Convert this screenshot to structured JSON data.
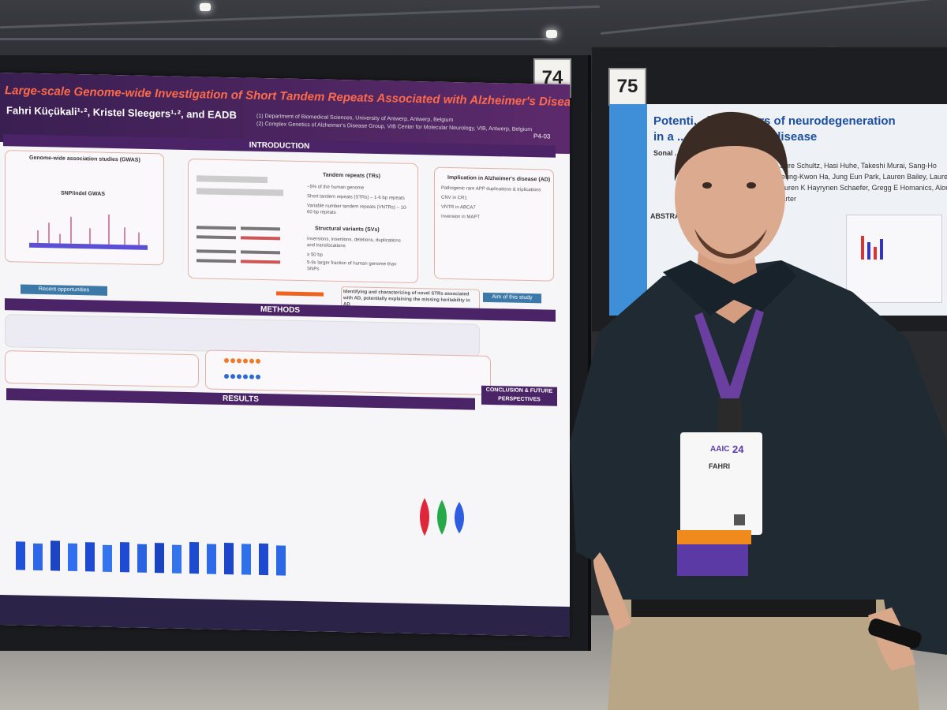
{
  "scene": {
    "description_label": "Poster session photo"
  },
  "board_numbers": {
    "left": "74",
    "right": "75"
  },
  "poster_left": {
    "title": "Large-scale Genome-wide Investigation of Short Tandem Repeats Associated with Alzheimer's Disease Risk",
    "authors": "Fahri Küçükali¹·², Kristel Sleegers¹·², and EADB",
    "affiliation_1": "(1) Department of Biomedical Sciences, University of Antwerp, Antwerp, Belgium",
    "affiliation_2": "(2) Complex Genetics of Alzheimer's Disease Group, VIB Center for Molecular Neurology, VIB, Antwerp, Belgium",
    "poster_code": "P4-03",
    "sections": {
      "introduction": "INTRODUCTION",
      "methods": "METHODS",
      "results": "RESULTS",
      "conclusion": "CONCLUSION & FUTURE PERSPECTIVES"
    },
    "intro_gwas_heading": "Genome-wide association studies (GWAS)",
    "intro_snp_label": "SNP/indel GWAS",
    "intro_tr_heading": "Tandem repeats (TRs)",
    "intro_tr_items": [
      "~5% of the human genome",
      "Short tandem repeats (STRs) – 1-6 bp repeats",
      "Variable number tandem repeats (VNTRs) – 10-60 bp repeats"
    ],
    "intro_sv_heading": "Structural variants (SVs)",
    "intro_sv_items": [
      "Inversions, insertions, deletions, duplications and translocations",
      "≥ 50 bp",
      "5-9x larger fraction of human genome than SNPs"
    ],
    "intro_ad_heading": "Implication in Alzheimer's disease (AD)",
    "intro_ad_items": [
      "Pathogenic rare APP duplications & triplications",
      "CNV in CR1",
      "VNTR in ABCA7",
      "Inversion in MAPT"
    ],
    "recent_opportunities": "Recent opportunities",
    "aim_label": "Aim of this study",
    "aim_text": "Identifying and characterizing of novel STRs associated with AD, potentially explaining the missing heritability in AD"
  },
  "poster_right": {
    "title_line1": "Potenti... biomarkers of neurodegeneration",
    "title_line2": "in a ... of Alzheimer's disease",
    "abstract_label": "ABSTRA",
    "text_lines": [
      "Sonal ...",
      "Laure Schultz, Hasi Huhe, Takeshi Murai, Sang-Ho",
      "Seung-Kwon Ha, Jung Eun Park, Lauren Bailey, Lauren",
      "Lauren K Hayrynen Schaefer, Gregg E Homanics, Alonso",
      "Carter"
    ]
  },
  "badge": {
    "year": "24",
    "name": "FAHRI"
  },
  "colors": {
    "poster_purple": "#4a2466",
    "title_orange": "#ff6a4a",
    "shirt": "#1f2a33",
    "lanyard": "#6b3fa0"
  }
}
